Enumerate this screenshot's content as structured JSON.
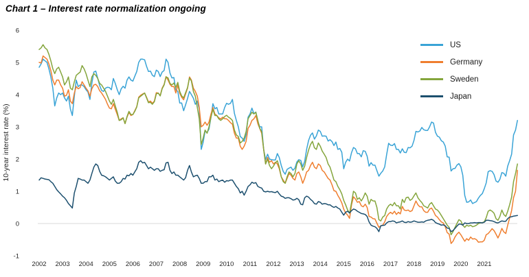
{
  "title": "Chart 1 – Interest rate normalization ongoing",
  "colors": {
    "background": "#ffffff",
    "gridline": "#d9d9d9",
    "tick_text": "#262626",
    "title_text": "#000000",
    "us": "#39a3d6",
    "germany": "#ef7e2e",
    "sweden": "#84a53c",
    "japan": "#1c4f6e"
  },
  "chart_data": {
    "type": "line",
    "title": "Chart 1 – Interest rate normalization ongoing",
    "xlabel": "",
    "ylabel": "10-year interest rate (%)",
    "ylim": [
      -1,
      6
    ],
    "yticks": [
      6,
      5,
      4,
      3,
      2,
      1,
      0,
      -1
    ],
    "xticks": [
      2002,
      2003,
      2004,
      2005,
      2006,
      2007,
      2008,
      2009,
      2010,
      2011,
      2012,
      2013,
      2014,
      2015,
      2016,
      2017,
      2018,
      2019,
      2020,
      2021
    ],
    "x_start": "2002-01",
    "x_end": "2022-06",
    "x_frequency": "monthly",
    "grid": "horizontal zero line only",
    "legend_position": "top-right",
    "series": [
      {
        "name": "US",
        "color": "#39a3d6",
        "values": [
          4.85,
          4.95,
          5.1,
          5.05,
          5.0,
          4.8,
          4.55,
          4.2,
          3.65,
          3.9,
          4.05,
          4.0,
          4.05,
          3.9,
          3.8,
          3.95,
          3.55,
          3.35,
          3.95,
          4.45,
          4.25,
          4.3,
          4.3,
          4.25,
          4.15,
          4.08,
          3.85,
          4.35,
          4.7,
          4.73,
          4.5,
          4.28,
          4.13,
          4.1,
          4.2,
          4.23,
          4.22,
          4.15,
          4.5,
          4.35,
          4.15,
          4.0,
          4.18,
          4.26,
          4.2,
          4.45,
          4.55,
          4.45,
          4.42,
          4.57,
          4.72,
          5.0,
          5.1,
          5.1,
          5.08,
          4.88,
          4.72,
          4.73,
          4.6,
          4.56,
          4.76,
          4.72,
          4.56,
          4.7,
          4.75,
          5.1,
          5.0,
          4.67,
          4.52,
          4.53,
          4.15,
          4.1,
          3.74,
          3.74,
          3.5,
          3.68,
          3.88,
          4.1,
          4.0,
          3.89,
          3.7,
          3.8,
          3.55,
          2.3,
          2.52,
          2.87,
          2.82,
          2.93,
          3.3,
          3.72,
          3.56,
          3.6,
          3.4,
          3.4,
          3.4,
          3.6,
          3.73,
          3.7,
          3.73,
          3.85,
          3.42,
          3.2,
          3.0,
          2.7,
          2.65,
          2.55,
          2.76,
          3.3,
          3.4,
          3.58,
          3.41,
          3.46,
          3.17,
          3.0,
          3.0,
          2.3,
          1.98,
          2.15,
          2.0,
          1.98,
          1.97,
          1.97,
          2.17,
          2.05,
          1.8,
          1.62,
          1.53,
          1.68,
          1.72,
          1.75,
          1.65,
          1.72,
          1.91,
          1.98,
          1.96,
          1.76,
          1.93,
          2.3,
          2.58,
          2.74,
          2.81,
          2.62,
          2.72,
          2.9,
          2.86,
          2.71,
          2.72,
          2.71,
          2.56,
          2.6,
          2.54,
          2.42,
          2.53,
          2.3,
          2.33,
          2.21,
          1.7,
          1.9,
          2.0,
          1.94,
          2.2,
          2.36,
          2.32,
          2.17,
          2.17,
          2.07,
          2.26,
          2.24,
          2.09,
          1.78,
          1.89,
          1.81,
          1.81,
          1.64,
          1.47,
          1.56,
          1.63,
          1.76,
          2.14,
          2.49,
          2.43,
          2.42,
          2.48,
          2.3,
          2.3,
          2.19,
          2.32,
          2.21,
          2.2,
          2.36,
          2.35,
          2.4,
          2.58,
          2.86,
          2.84,
          2.87,
          2.98,
          2.91,
          2.89,
          2.89,
          3.0,
          3.15,
          3.12,
          2.83,
          2.71,
          2.68,
          2.57,
          2.53,
          2.4,
          2.07,
          2.06,
          1.63,
          1.7,
          1.71,
          1.81,
          1.86,
          1.76,
          1.5,
          0.87,
          0.66,
          0.67,
          0.73,
          0.62,
          0.65,
          0.68,
          0.79,
          0.87,
          0.93,
          1.08,
          1.26,
          1.61,
          1.64,
          1.62,
          1.52,
          1.32,
          1.28,
          1.37,
          1.58,
          1.56,
          1.47,
          1.78,
          1.95,
          2.15,
          2.75,
          2.9,
          3.2
        ]
      },
      {
        "name": "Germany",
        "color": "#ef7e2e",
        "values": [
          5.0,
          4.98,
          5.2,
          5.15,
          5.1,
          4.95,
          4.75,
          4.45,
          4.3,
          4.45,
          4.45,
          4.3,
          4.2,
          3.95,
          3.98,
          4.15,
          3.8,
          3.72,
          4.05,
          4.25,
          4.18,
          4.22,
          4.4,
          4.3,
          4.2,
          4.12,
          3.95,
          4.18,
          4.3,
          4.32,
          4.25,
          4.12,
          4.05,
          3.95,
          3.85,
          3.7,
          3.58,
          3.56,
          3.72,
          3.55,
          3.38,
          3.2,
          3.25,
          3.28,
          3.1,
          3.3,
          3.45,
          3.35,
          3.38,
          3.5,
          3.63,
          3.92,
          3.98,
          4.02,
          4.05,
          3.92,
          3.77,
          3.8,
          3.73,
          3.8,
          4.06,
          4.05,
          3.97,
          4.2,
          4.32,
          4.56,
          4.45,
          4.32,
          4.25,
          4.25,
          4.05,
          4.3,
          4.04,
          3.92,
          3.84,
          4.02,
          4.2,
          4.55,
          4.45,
          4.2,
          4.1,
          3.95,
          3.6,
          3.0,
          3.05,
          3.15,
          3.05,
          3.15,
          3.4,
          3.6,
          3.4,
          3.35,
          3.28,
          3.25,
          3.3,
          3.25,
          3.25,
          3.2,
          3.13,
          3.08,
          2.8,
          2.65,
          2.65,
          2.4,
          2.3,
          2.4,
          2.55,
          2.95,
          3.05,
          3.2,
          3.25,
          3.35,
          3.1,
          2.95,
          2.8,
          2.3,
          1.85,
          2.05,
          1.9,
          1.95,
          1.85,
          1.9,
          1.85,
          1.7,
          1.45,
          1.35,
          1.25,
          1.4,
          1.55,
          1.5,
          1.4,
          1.35,
          1.55,
          1.6,
          1.45,
          1.25,
          1.4,
          1.6,
          1.65,
          1.8,
          1.9,
          1.75,
          1.7,
          1.85,
          1.8,
          1.65,
          1.6,
          1.5,
          1.4,
          1.35,
          1.2,
          1.02,
          1.0,
          0.87,
          0.77,
          0.64,
          0.45,
          0.33,
          0.26,
          0.16,
          0.58,
          0.83,
          0.76,
          0.66,
          0.68,
          0.55,
          0.52,
          0.6,
          0.5,
          0.22,
          0.2,
          0.15,
          0.14,
          0.01,
          -0.12,
          -0.07,
          -0.05,
          0.05,
          0.22,
          0.3,
          0.35,
          0.3,
          0.38,
          0.28,
          0.35,
          0.3,
          0.53,
          0.42,
          0.4,
          0.42,
          0.37,
          0.4,
          0.55,
          0.7,
          0.58,
          0.52,
          0.52,
          0.4,
          0.35,
          0.35,
          0.45,
          0.48,
          0.38,
          0.25,
          0.2,
          0.12,
          0.05,
          0.02,
          -0.1,
          -0.28,
          -0.33,
          -0.62,
          -0.55,
          -0.42,
          -0.33,
          -0.27,
          -0.35,
          -0.45,
          -0.55,
          -0.47,
          -0.52,
          -0.42,
          -0.48,
          -0.47,
          -0.5,
          -0.58,
          -0.57,
          -0.57,
          -0.52,
          -0.35,
          -0.31,
          -0.24,
          -0.16,
          -0.22,
          -0.33,
          -0.45,
          -0.32,
          -0.15,
          -0.26,
          -0.31,
          -0.05,
          0.17,
          0.4,
          0.8,
          1.0,
          1.65
        ]
      },
      {
        "name": "Sweden",
        "color": "#84a53c",
        "values": [
          5.4,
          5.45,
          5.55,
          5.45,
          5.4,
          5.25,
          5.05,
          4.8,
          4.65,
          4.8,
          4.85,
          4.7,
          4.55,
          4.3,
          4.4,
          4.55,
          4.2,
          4.15,
          4.4,
          4.6,
          4.65,
          4.7,
          4.9,
          4.8,
          4.65,
          4.45,
          4.25,
          4.55,
          4.65,
          4.6,
          4.5,
          4.35,
          4.3,
          4.2,
          4.1,
          3.95,
          3.8,
          3.7,
          3.85,
          3.65,
          3.45,
          3.2,
          3.22,
          3.28,
          3.1,
          3.32,
          3.48,
          3.38,
          3.38,
          3.48,
          3.62,
          3.9,
          3.95,
          4.0,
          4.05,
          3.9,
          3.75,
          3.76,
          3.7,
          3.78,
          4.02,
          4.05,
          3.96,
          4.18,
          4.3,
          4.55,
          4.52,
          4.35,
          4.3,
          4.36,
          4.22,
          4.38,
          4.1,
          3.96,
          3.9,
          4.06,
          4.22,
          4.52,
          4.42,
          4.1,
          3.95,
          3.6,
          3.25,
          2.45,
          2.65,
          2.9,
          2.8,
          3.0,
          3.3,
          3.55,
          3.35,
          3.35,
          3.25,
          3.2,
          3.25,
          3.32,
          3.36,
          3.3,
          3.26,
          3.2,
          2.9,
          2.75,
          2.7,
          2.5,
          2.55,
          2.65,
          2.85,
          3.25,
          3.35,
          3.45,
          3.4,
          3.45,
          3.2,
          2.95,
          2.85,
          2.3,
          1.85,
          2.0,
          1.8,
          1.7,
          1.78,
          1.88,
          1.95,
          1.75,
          1.45,
          1.3,
          1.25,
          1.45,
          1.6,
          1.55,
          1.45,
          1.55,
          1.85,
          1.95,
          1.85,
          1.65,
          1.78,
          2.05,
          2.28,
          2.45,
          2.55,
          2.35,
          2.3,
          2.5,
          2.4,
          2.25,
          2.15,
          2.05,
          1.85,
          1.75,
          1.55,
          1.35,
          1.3,
          1.15,
          1.05,
          0.92,
          0.72,
          0.58,
          0.42,
          0.32,
          0.65,
          1.0,
          0.95,
          0.75,
          0.8,
          0.7,
          0.8,
          0.95,
          0.85,
          0.6,
          0.75,
          0.7,
          0.7,
          0.5,
          0.12,
          0.08,
          0.2,
          0.25,
          0.45,
          0.55,
          0.6,
          0.55,
          0.65,
          0.55,
          0.55,
          0.45,
          0.75,
          0.65,
          0.8,
          0.82,
          0.72,
          0.76,
          0.86,
          0.95,
          0.8,
          0.72,
          0.65,
          0.55,
          0.52,
          0.48,
          0.6,
          0.65,
          0.55,
          0.45,
          0.42,
          0.35,
          0.25,
          0.15,
          0.05,
          -0.05,
          -0.12,
          -0.35,
          -0.25,
          -0.12,
          0.0,
          0.12,
          0.08,
          -0.05,
          -0.12,
          -0.05,
          -0.08,
          -0.05,
          -0.1,
          -0.08,
          -0.05,
          0.0,
          0.02,
          0.03,
          0.05,
          0.18,
          0.38,
          0.42,
          0.38,
          0.32,
          0.15,
          0.1,
          0.22,
          0.42,
          0.28,
          0.22,
          0.38,
          0.58,
          0.82,
          1.3,
          1.55,
          1.85
        ]
      },
      {
        "name": "Japan",
        "color": "#1c4f6e",
        "values": [
          1.35,
          1.42,
          1.4,
          1.38,
          1.37,
          1.36,
          1.3,
          1.25,
          1.15,
          1.05,
          0.98,
          0.92,
          0.85,
          0.8,
          0.72,
          0.62,
          0.55,
          0.48,
          0.95,
          1.15,
          1.4,
          1.38,
          1.35,
          1.35,
          1.3,
          1.25,
          1.35,
          1.55,
          1.75,
          1.85,
          1.8,
          1.62,
          1.5,
          1.48,
          1.45,
          1.4,
          1.35,
          1.4,
          1.45,
          1.32,
          1.25,
          1.25,
          1.3,
          1.4,
          1.38,
          1.5,
          1.48,
          1.55,
          1.5,
          1.6,
          1.7,
          1.9,
          1.95,
          1.88,
          1.9,
          1.8,
          1.7,
          1.75,
          1.7,
          1.65,
          1.7,
          1.7,
          1.62,
          1.65,
          1.67,
          1.88,
          1.9,
          1.65,
          1.55,
          1.6,
          1.5,
          1.5,
          1.45,
          1.4,
          1.35,
          1.42,
          1.65,
          1.8,
          1.6,
          1.45,
          1.48,
          1.5,
          1.4,
          1.25,
          1.25,
          1.3,
          1.3,
          1.45,
          1.45,
          1.5,
          1.35,
          1.38,
          1.3,
          1.33,
          1.35,
          1.28,
          1.33,
          1.32,
          1.35,
          1.35,
          1.25,
          1.15,
          1.08,
          0.95,
          1.0,
          0.88,
          1.0,
          1.15,
          1.2,
          1.28,
          1.25,
          1.27,
          1.15,
          1.12,
          1.1,
          1.0,
          0.98,
          1.0,
          0.98,
          0.99,
          0.97,
          0.96,
          1.0,
          0.92,
          0.85,
          0.83,
          0.78,
          0.8,
          0.8,
          0.77,
          0.73,
          0.74,
          0.78,
          0.74,
          0.6,
          0.58,
          0.8,
          0.85,
          0.82,
          0.75,
          0.7,
          0.62,
          0.6,
          0.68,
          0.66,
          0.6,
          0.62,
          0.61,
          0.58,
          0.58,
          0.53,
          0.5,
          0.53,
          0.48,
          0.45,
          0.35,
          0.26,
          0.35,
          0.38,
          0.33,
          0.4,
          0.45,
          0.43,
          0.38,
          0.35,
          0.31,
          0.3,
          0.28,
          0.22,
          0.05,
          -0.05,
          -0.08,
          -0.1,
          -0.15,
          -0.25,
          -0.07,
          -0.06,
          -0.05,
          0.02,
          0.06,
          0.06,
          0.08,
          0.07,
          0.02,
          0.04,
          0.05,
          0.08,
          0.04,
          0.03,
          0.06,
          0.04,
          0.05,
          0.08,
          0.06,
          0.04,
          0.04,
          0.05,
          0.04,
          0.08,
          0.1,
          0.11,
          0.13,
          0.1,
          0.03,
          0.0,
          -0.02,
          -0.05,
          -0.04,
          -0.07,
          -0.14,
          -0.15,
          -0.25,
          -0.22,
          -0.15,
          -0.08,
          -0.02,
          -0.02,
          -0.05,
          0.02,
          0.0,
          0.0,
          0.02,
          0.02,
          0.03,
          0.02,
          0.03,
          0.03,
          0.02,
          0.04,
          0.1,
          0.1,
          0.09,
          0.08,
          0.06,
          0.03,
          0.02,
          0.05,
          0.08,
          0.07,
          0.07,
          0.15,
          0.2,
          0.21,
          0.23,
          0.24,
          0.25
        ]
      }
    ]
  }
}
